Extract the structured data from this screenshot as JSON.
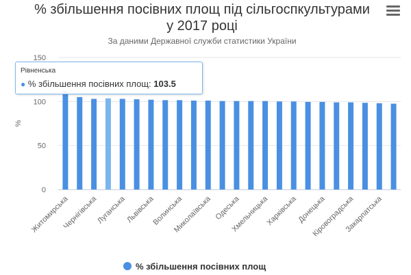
{
  "menu_icon": "hamburger-menu-icon",
  "chart_data": {
    "type": "bar",
    "title": "% збільшення посівних площ під сільгоспкультурами у 2017 році",
    "title_lines": [
      "% збільшення посівних площ під сільгоспкультурами",
      "у 2017 році"
    ],
    "subtitle": "За даними Державної служби статистики України",
    "ylabel": "%",
    "xlabel": "",
    "ylim": [
      0,
      150
    ],
    "yticks": [
      0,
      50,
      100,
      150
    ],
    "grid": true,
    "legend_position": "bottom-center",
    "colors": {
      "bar": "#4a90e2",
      "highlight": "#7cb5ec",
      "grid": "#e6e6e6"
    },
    "categories": [
      "Житомирська",
      "",
      "Чернігівська",
      "",
      "Луганська",
      "",
      "Львівська",
      "",
      "Волинська",
      "",
      "Миколаївська",
      "",
      "Одеська",
      "",
      "Хмельницька",
      "",
      "Харківська",
      "",
      "Донецька",
      "",
      "Кіровоградська",
      "",
      "Закарпатська",
      ""
    ],
    "series": [
      {
        "name": "% збільшення посівних площ",
        "values": [
          112,
          105,
          103,
          103.5,
          103,
          102.5,
          102,
          101.5,
          101.5,
          101,
          101,
          100.5,
          100.5,
          100.5,
          100.5,
          100,
          100,
          99.5,
          99.5,
          99,
          99,
          98.5,
          98,
          97.5
        ]
      }
    ],
    "highlight_index": 3,
    "tooltip": {
      "category": "Рівненська",
      "series": "% збільшення посівних площ",
      "value": "103.5"
    }
  }
}
